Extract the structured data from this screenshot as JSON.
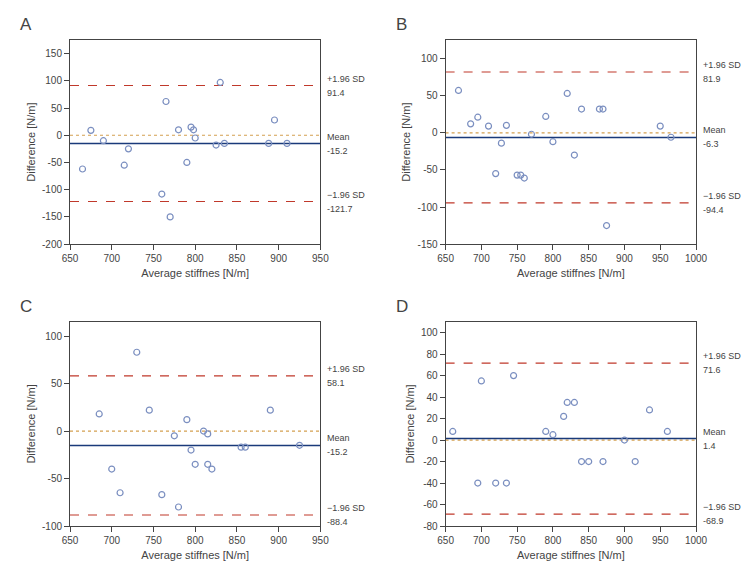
{
  "chart_data": [
    {
      "type": "scatter",
      "title": "A",
      "xlabel": "Average stiffnes [N/m]",
      "ylabel": "Difference [N/m]",
      "xlim": [
        650,
        950
      ],
      "ylim": [
        -200,
        175
      ],
      "xticks": [
        650,
        700,
        750,
        800,
        850,
        900,
        950
      ],
      "yticks": [
        -200,
        -150,
        -100,
        -50,
        0,
        50,
        100,
        150
      ],
      "grid": false,
      "marker": "open circle",
      "color": "#7b8fc0",
      "x": [
        665,
        675,
        690,
        715,
        720,
        760,
        765,
        770,
        780,
        790,
        795,
        798,
        800,
        825,
        830,
        835,
        888,
        895,
        910
      ],
      "values": [
        -62,
        9,
        -10,
        -55,
        -25,
        -108,
        62,
        -150,
        10,
        -50,
        15,
        10,
        -5,
        -18,
        97,
        -15,
        -15,
        28,
        -15
      ],
      "lines": [
        {
          "value": 0,
          "color": "#d4a050",
          "line_style": "dotted"
        },
        {
          "name": "Mean",
          "value": -15.2,
          "value_label": "-15.2",
          "color": "#1a3a7a",
          "line_style": "solid"
        },
        {
          "name": "+1.96 SD",
          "value": 91.4,
          "value_label": "91.4",
          "color": "#c0392b",
          "line_style": "dashed"
        },
        {
          "name": "−1.96 SD",
          "value": -121.7,
          "value_label": "-121.7",
          "color": "#c0392b",
          "line_style": "dashed"
        }
      ]
    },
    {
      "type": "scatter",
      "title": "B",
      "xlabel": "Average stiffnes [N/m]",
      "ylabel": "Difference [N/m]",
      "xlim": [
        650,
        1000
      ],
      "ylim": [
        -150,
        125
      ],
      "xticks": [
        650,
        700,
        750,
        800,
        850,
        900,
        950,
        1000
      ],
      "yticks": [
        -150,
        -100,
        -50,
        0,
        50,
        100
      ],
      "grid": false,
      "marker": "open circle",
      "color": "#7b8fc0",
      "x": [
        668,
        685,
        695,
        710,
        720,
        728,
        735,
        750,
        755,
        760,
        770,
        790,
        800,
        820,
        830,
        840,
        865,
        870,
        875,
        950,
        965
      ],
      "values": [
        57,
        12,
        21,
        9,
        -55,
        -14,
        10,
        -57,
        -57,
        -61,
        -2,
        22,
        -12,
        53,
        -30,
        32,
        32,
        32,
        -125,
        9,
        -6
      ],
      "lines": [
        {
          "value": 0,
          "color": "#d4a050",
          "line_style": "dotted"
        },
        {
          "name": "Mean",
          "value": -6.3,
          "value_label": "-6.3",
          "color": "#1a3a7a",
          "line_style": "solid"
        },
        {
          "name": "+1.96 SD",
          "value": 81.9,
          "value_label": "81.9",
          "color": "#c0392b",
          "line_style": "dashed"
        },
        {
          "name": "−1.96 SD",
          "value": -94.4,
          "value_label": "-94.4",
          "color": "#c0392b",
          "line_style": "dashed"
        }
      ]
    },
    {
      "type": "scatter",
      "title": "C",
      "xlabel": "Average stiffnes [N/m]",
      "ylabel": "Difference [N/m]",
      "xlim": [
        650,
        950
      ],
      "ylim": [
        -100,
        115
      ],
      "xticks": [
        650,
        700,
        750,
        800,
        850,
        900,
        950
      ],
      "yticks": [
        -100,
        -50,
        0,
        50,
        100
      ],
      "grid": false,
      "marker": "open circle",
      "color": "#7b8fc0",
      "x": [
        685,
        700,
        710,
        730,
        745,
        760,
        775,
        780,
        790,
        795,
        800,
        810,
        815,
        815,
        820,
        855,
        860,
        890,
        925
      ],
      "values": [
        18,
        -40,
        -65,
        83,
        22,
        -67,
        -5,
        -80,
        12,
        -20,
        -35,
        0,
        -3,
        -35,
        -40,
        -17,
        -17,
        22,
        -15
      ],
      "lines": [
        {
          "value": 0,
          "color": "#d4a050",
          "line_style": "dotted"
        },
        {
          "name": "Mean",
          "value": -15.2,
          "value_label": "-15.2",
          "color": "#1a3a7a",
          "line_style": "solid"
        },
        {
          "name": "+1.96 SD",
          "value": 58.1,
          "value_label": "58.1",
          "color": "#c0392b",
          "line_style": "dashed"
        },
        {
          "name": "−1.96 SD",
          "value": -88.4,
          "value_label": "-88.4",
          "color": "#c0392b",
          "line_style": "dashed"
        }
      ]
    },
    {
      "type": "scatter",
      "title": "D",
      "xlabel": "Average stiffnes [N/m]",
      "ylabel": "Difference [N/m]",
      "xlim": [
        650,
        1000
      ],
      "ylim": [
        -80,
        110
      ],
      "xticks": [
        650,
        700,
        750,
        800,
        850,
        900,
        950,
        1000
      ],
      "yticks": [
        -80,
        -60,
        -40,
        -20,
        0,
        20,
        40,
        60,
        80,
        100
      ],
      "grid": false,
      "marker": "open circle",
      "color": "#7b8fc0",
      "x": [
        660,
        695,
        700,
        720,
        735,
        745,
        790,
        800,
        815,
        820,
        830,
        840,
        850,
        870,
        900,
        915,
        935,
        960
      ],
      "values": [
        8,
        -40,
        55,
        -40,
        -40,
        60,
        8,
        5,
        22,
        35,
        35,
        -20,
        -20,
        -20,
        0,
        -20,
        28,
        8
      ],
      "lines": [
        {
          "value": 0,
          "color": "#d4a050",
          "line_style": "dotted"
        },
        {
          "name": "Mean",
          "value": 1.4,
          "value_label": "1.4",
          "color": "#1a3a7a",
          "line_style": "solid"
        },
        {
          "name": "+1.96 SD",
          "value": 71.6,
          "value_label": "71.6",
          "color": "#c0392b",
          "line_style": "dashed"
        },
        {
          "name": "−1.96 SD",
          "value": -68.9,
          "value_label": "-68.9",
          "color": "#c0392b",
          "line_style": "dashed"
        }
      ]
    }
  ]
}
